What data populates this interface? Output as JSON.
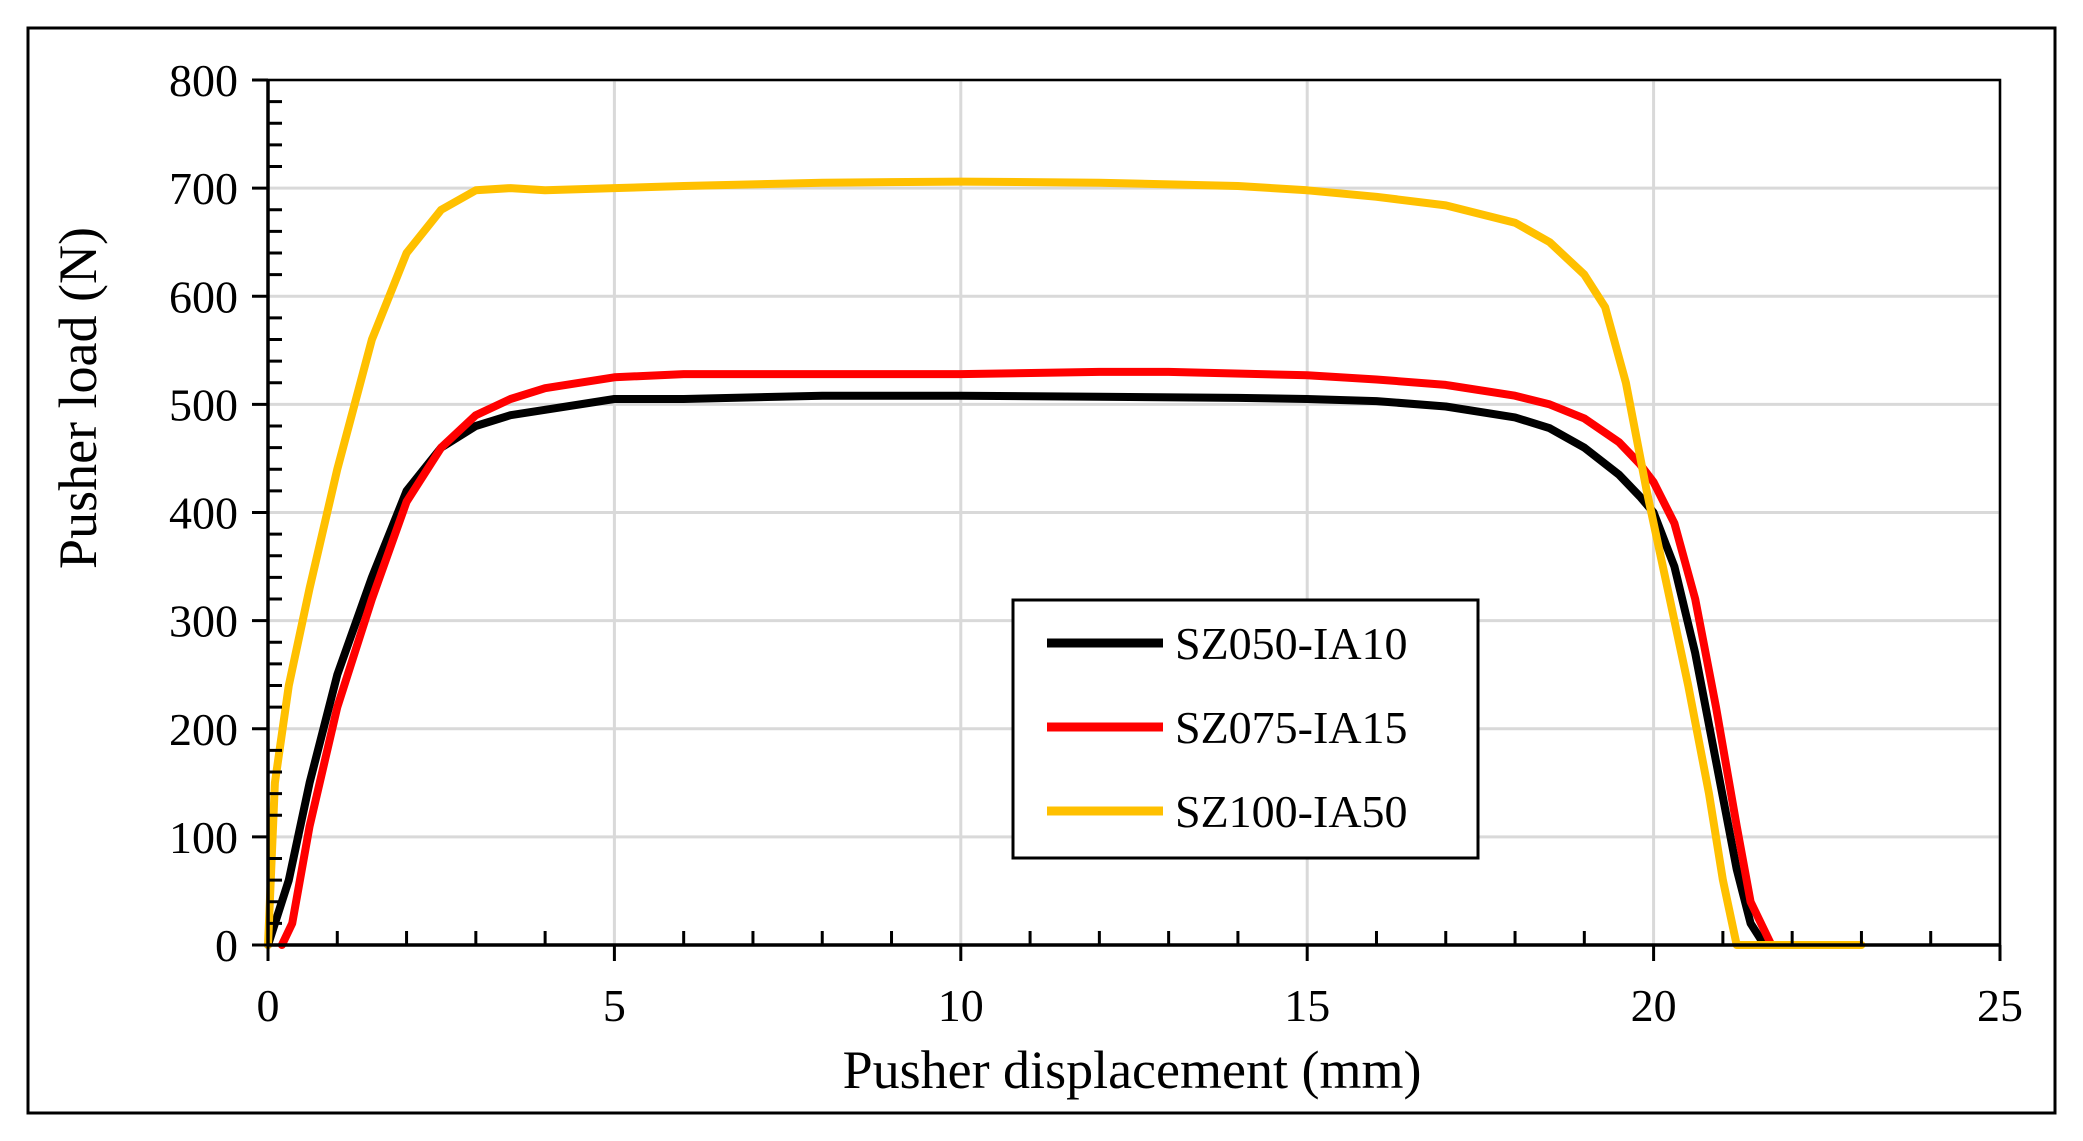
{
  "chart_data": {
    "type": "line",
    "title": "",
    "xlabel": "Pusher displacement (mm)",
    "ylabel": "Pusher load (N)",
    "xlim": [
      0,
      25
    ],
    "ylim": [
      0,
      800
    ],
    "xticks": [
      0,
      5,
      10,
      15,
      20,
      25
    ],
    "yticks": [
      0,
      100,
      200,
      300,
      400,
      500,
      600,
      700,
      800
    ],
    "xtick_labels": [
      "0",
      "5",
      "10",
      "15",
      "20",
      "25"
    ],
    "ytick_labels": [
      "0",
      "100",
      "200",
      "300",
      "400",
      "500",
      "600",
      "700",
      "800"
    ],
    "x_minor_step": 1,
    "y_minor_step": 20,
    "grid": true,
    "legend_position": "lower-center",
    "series": [
      {
        "name": "SZ050-IA10",
        "color": "#000000",
        "x": [
          0,
          0.3,
          0.6,
          1.0,
          1.5,
          2.0,
          2.5,
          3.0,
          3.5,
          4.0,
          5.0,
          6.0,
          8.0,
          10.0,
          12.0,
          14.0,
          15.0,
          16.0,
          17.0,
          18.0,
          18.5,
          19.0,
          19.5,
          19.8,
          20.0,
          20.3,
          20.6,
          20.9,
          21.2,
          21.4,
          21.6
        ],
        "y": [
          0,
          60,
          150,
          250,
          340,
          420,
          460,
          480,
          490,
          495,
          505,
          505,
          508,
          508,
          507,
          506,
          505,
          503,
          498,
          488,
          478,
          460,
          435,
          415,
          400,
          350,
          270,
          170,
          70,
          20,
          0
        ]
      },
      {
        "name": "SZ075-IA15",
        "color": "#ff0000",
        "x": [
          0.2,
          0.35,
          0.6,
          1.0,
          1.5,
          2.0,
          2.5,
          3.0,
          3.5,
          4.0,
          5.0,
          6.0,
          8.0,
          10.0,
          12.0,
          13.0,
          15.0,
          16.0,
          17.0,
          18.0,
          18.5,
          19.0,
          19.5,
          19.8,
          20.0,
          20.3,
          20.6,
          20.9,
          21.2,
          21.4,
          21.7
        ],
        "y": [
          0,
          20,
          110,
          220,
          320,
          410,
          460,
          490,
          505,
          515,
          525,
          528,
          528,
          528,
          530,
          530,
          527,
          523,
          518,
          508,
          500,
          487,
          465,
          445,
          428,
          390,
          320,
          220,
          110,
          40,
          0
        ]
      },
      {
        "name": "SZ100-IA50",
        "color": "#ffc000",
        "x": [
          0,
          0.1,
          0.3,
          0.6,
          1.0,
          1.5,
          2.0,
          2.5,
          3.0,
          3.5,
          4.0,
          5.0,
          6.0,
          8.0,
          10.0,
          12.0,
          14.0,
          15.0,
          16.0,
          17.0,
          18.0,
          18.5,
          19.0,
          19.3,
          19.6,
          19.9,
          20.2,
          20.5,
          20.8,
          21.0,
          21.2,
          22.0,
          23.0
        ],
        "y": [
          0,
          150,
          240,
          330,
          440,
          560,
          640,
          680,
          698,
          700,
          698,
          700,
          702,
          705,
          706,
          705,
          702,
          698,
          692,
          684,
          668,
          650,
          620,
          590,
          520,
          420,
          330,
          240,
          140,
          60,
          0,
          0,
          0
        ]
      }
    ]
  }
}
